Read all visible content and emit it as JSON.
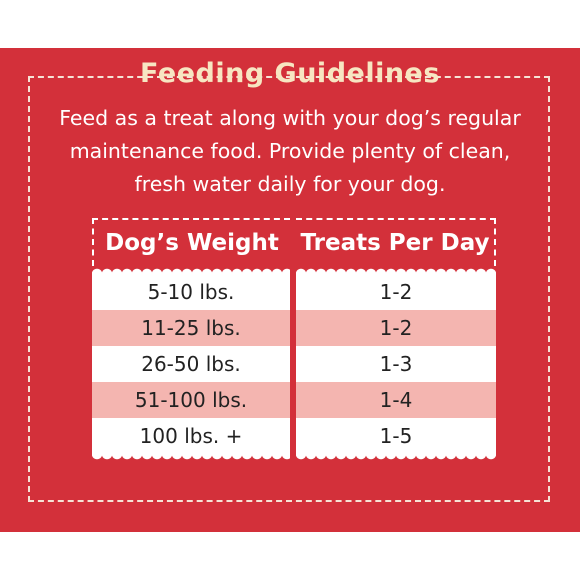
{
  "title": "Feeding Guidelines",
  "intro": {
    "line1": "Feed as a treat along with your dog’s regular",
    "line2": "maintenance food. Provide plenty of clean,",
    "line3": "fresh water daily for your dog."
  },
  "table": {
    "headers": [
      "Dog’s Weight",
      "Treats Per Day"
    ],
    "rows": [
      [
        "5-10 lbs.",
        "1-2"
      ],
      [
        "11-25 lbs.",
        "1-2"
      ],
      [
        "26-50 lbs.",
        "1-3"
      ],
      [
        "51-100 lbs.",
        "1-4"
      ],
      [
        "100 lbs. +",
        "1-5"
      ]
    ]
  },
  "colors": {
    "background": "#d3303a",
    "title": "#f7e6c2",
    "row_alt": "#f4b5b0",
    "row": "#ffffff"
  }
}
